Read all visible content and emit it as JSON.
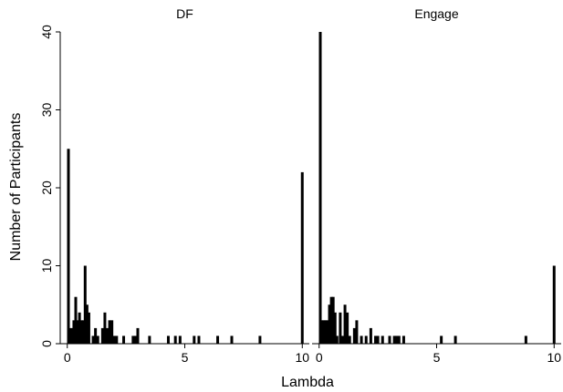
{
  "chart_data": {
    "type": "bar",
    "xlabel": "Lambda",
    "ylabel": "Number of Participants",
    "x_ticks": [
      "0",
      "5",
      "10"
    ],
    "y_ticks": [
      "0",
      "10",
      "20",
      "30",
      "40"
    ],
    "xlim": [
      -0.3,
      10.3
    ],
    "ylim": [
      0,
      40
    ],
    "panels": [
      {
        "name": "DF",
        "bars": [
          {
            "x": 0.05,
            "count": 25
          },
          {
            "x": 0.12,
            "count": 2
          },
          {
            "x": 0.2,
            "count": 2
          },
          {
            "x": 0.28,
            "count": 3
          },
          {
            "x": 0.36,
            "count": 6
          },
          {
            "x": 0.44,
            "count": 3
          },
          {
            "x": 0.52,
            "count": 4
          },
          {
            "x": 0.6,
            "count": 3
          },
          {
            "x": 0.68,
            "count": 3
          },
          {
            "x": 0.76,
            "count": 10
          },
          {
            "x": 0.84,
            "count": 5
          },
          {
            "x": 0.92,
            "count": 4
          },
          {
            "x": 1.1,
            "count": 1
          },
          {
            "x": 1.2,
            "count": 2
          },
          {
            "x": 1.3,
            "count": 1
          },
          {
            "x": 1.5,
            "count": 2
          },
          {
            "x": 1.6,
            "count": 4
          },
          {
            "x": 1.7,
            "count": 2
          },
          {
            "x": 1.8,
            "count": 3
          },
          {
            "x": 1.9,
            "count": 3
          },
          {
            "x": 2.0,
            "count": 1
          },
          {
            "x": 2.1,
            "count": 1
          },
          {
            "x": 2.4,
            "count": 1
          },
          {
            "x": 2.8,
            "count": 1
          },
          {
            "x": 2.9,
            "count": 1
          },
          {
            "x": 3.0,
            "count": 2
          },
          {
            "x": 3.5,
            "count": 1
          },
          {
            "x": 4.3,
            "count": 1
          },
          {
            "x": 4.6,
            "count": 1
          },
          {
            "x": 4.8,
            "count": 1
          },
          {
            "x": 5.4,
            "count": 1
          },
          {
            "x": 5.6,
            "count": 1
          },
          {
            "x": 6.4,
            "count": 1
          },
          {
            "x": 7.0,
            "count": 1
          },
          {
            "x": 8.2,
            "count": 1
          },
          {
            "x": 10.0,
            "count": 22
          }
        ]
      },
      {
        "name": "Engage",
        "bars": [
          {
            "x": 0.05,
            "count": 40
          },
          {
            "x": 0.12,
            "count": 3
          },
          {
            "x": 0.2,
            "count": 3
          },
          {
            "x": 0.28,
            "count": 3
          },
          {
            "x": 0.36,
            "count": 3
          },
          {
            "x": 0.44,
            "count": 5
          },
          {
            "x": 0.52,
            "count": 6
          },
          {
            "x": 0.6,
            "count": 6
          },
          {
            "x": 0.68,
            "count": 4
          },
          {
            "x": 0.76,
            "count": 1
          },
          {
            "x": 0.9,
            "count": 4
          },
          {
            "x": 1.0,
            "count": 1
          },
          {
            "x": 1.1,
            "count": 5
          },
          {
            "x": 1.2,
            "count": 4
          },
          {
            "x": 1.3,
            "count": 1
          },
          {
            "x": 1.5,
            "count": 2
          },
          {
            "x": 1.6,
            "count": 3
          },
          {
            "x": 1.8,
            "count": 1
          },
          {
            "x": 2.0,
            "count": 1
          },
          {
            "x": 2.2,
            "count": 2
          },
          {
            "x": 2.4,
            "count": 1
          },
          {
            "x": 2.5,
            "count": 1
          },
          {
            "x": 2.7,
            "count": 1
          },
          {
            "x": 3.0,
            "count": 1
          },
          {
            "x": 3.2,
            "count": 1
          },
          {
            "x": 3.3,
            "count": 1
          },
          {
            "x": 3.4,
            "count": 1
          },
          {
            "x": 3.6,
            "count": 1
          },
          {
            "x": 5.2,
            "count": 1
          },
          {
            "x": 5.8,
            "count": 1
          },
          {
            "x": 8.8,
            "count": 1
          },
          {
            "x": 10.0,
            "count": 10
          }
        ]
      }
    ],
    "grid": false,
    "legend": "none"
  }
}
